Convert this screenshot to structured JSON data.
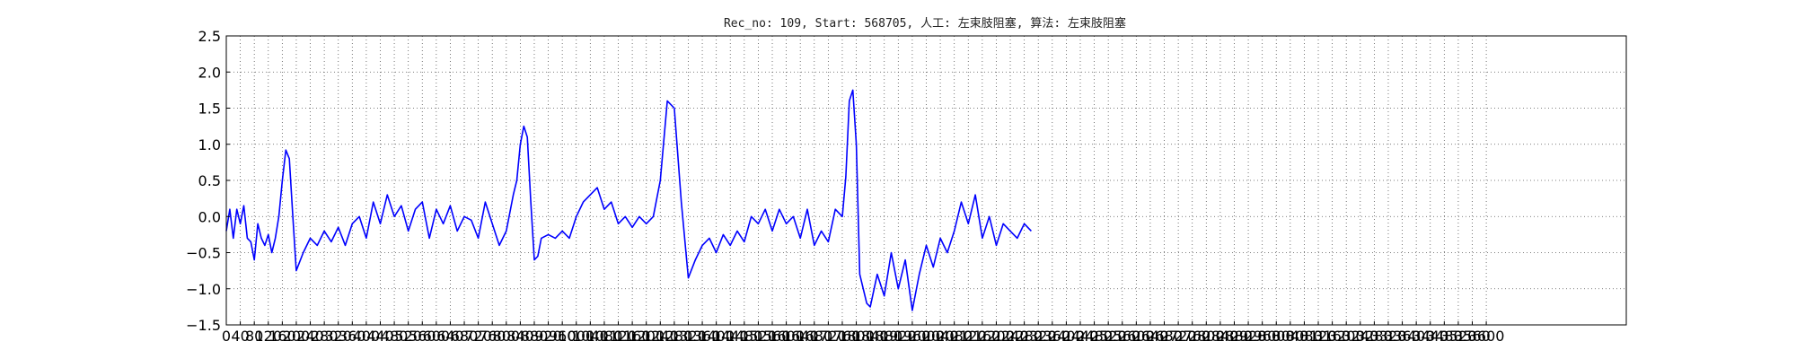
{
  "chart_data": {
    "type": "line",
    "title": "Rec_no: 109, Start: 568705, 人工: 左束肢阻塞, 算法: 左束肢阻塞",
    "xlabel": "",
    "ylabel": "",
    "xlim": [
      0,
      4000
    ],
    "ylim": [
      -1.5,
      2.5
    ],
    "grid": true,
    "x_ticks": [
      0,
      40,
      80,
      120,
      160,
      200,
      240,
      280,
      320,
      360,
      400,
      440,
      480,
      520,
      560,
      600,
      640,
      680,
      720,
      760,
      800,
      840,
      880,
      920,
      960,
      1000,
      1040,
      1080,
      1120,
      1160,
      1200,
      1240,
      1280,
      1320,
      1360,
      1400,
      1440,
      1480,
      1520,
      1560,
      1600,
      1640,
      1680,
      1720,
      1760,
      1800,
      1840,
      1880,
      1920,
      1960,
      2000,
      2040,
      2080,
      2120,
      2160,
      2200,
      2240,
      2280,
      2320,
      2360,
      2400,
      2440,
      2480,
      2520,
      2560,
      2600,
      2640,
      2680,
      2720,
      2760,
      2800,
      2840,
      2880,
      2920,
      2960,
      3000,
      3040,
      3080,
      3120,
      3160,
      3200,
      3240,
      3280,
      3320,
      3360,
      3400,
      3440,
      3480,
      3520,
      3560,
      3600
    ],
    "y_ticks": [
      "2.5",
      "2.0",
      "1.5",
      "1.0",
      "0.5",
      "0.0",
      "−0.5",
      "−1.0",
      "−1.5"
    ],
    "y_tick_values": [
      2.5,
      2.0,
      1.5,
      1.0,
      0.5,
      0.0,
      -0.5,
      -1.0,
      -1.5
    ],
    "series": [
      {
        "color": "#0000ff",
        "x": [
          0,
          10,
          20,
          30,
          40,
          50,
          60,
          70,
          80,
          90,
          100,
          110,
          120,
          130,
          140,
          150,
          160,
          170,
          180,
          190,
          200,
          220,
          240,
          260,
          280,
          300,
          320,
          340,
          360,
          380,
          400,
          420,
          440,
          460,
          480,
          500,
          520,
          540,
          560,
          580,
          600,
          620,
          640,
          660,
          680,
          700,
          720,
          740,
          760,
          780,
          800,
          820,
          830,
          840,
          850,
          860,
          870,
          880,
          890,
          900,
          920,
          940,
          960,
          980,
          1000,
          1020,
          1040,
          1060,
          1080,
          1100,
          1120,
          1140,
          1160,
          1180,
          1200,
          1220,
          1240,
          1260,
          1280,
          1300,
          1320,
          1340,
          1360,
          1380,
          1400,
          1420,
          1440,
          1460,
          1480,
          1500,
          1520,
          1540,
          1560,
          1580,
          1600,
          1620,
          1640,
          1660,
          1680,
          1700,
          1720,
          1740,
          1760,
          1770,
          1780,
          1790,
          1800,
          1810,
          1820,
          1830,
          1840,
          1860,
          1880,
          1900,
          1920,
          1940,
          1960,
          1980,
          2000,
          2020,
          2040,
          2060,
          2080,
          2100,
          2120,
          2140,
          2160,
          2180,
          2200,
          2220,
          2240,
          2260,
          2280,
          2300
        ],
        "y": [
          -0.2,
          0.1,
          -0.3,
          0.1,
          -0.1,
          0.15,
          -0.3,
          -0.35,
          -0.6,
          -0.1,
          -0.3,
          -0.4,
          -0.25,
          -0.5,
          -0.3,
          0.0,
          0.5,
          0.92,
          0.8,
          0.0,
          -0.75,
          -0.5,
          -0.3,
          -0.4,
          -0.2,
          -0.35,
          -0.15,
          -0.4,
          -0.1,
          0.0,
          -0.3,
          0.2,
          -0.1,
          0.3,
          0.0,
          0.15,
          -0.2,
          0.1,
          0.2,
          -0.3,
          0.1,
          -0.1,
          0.15,
          -0.2,
          0.0,
          -0.05,
          -0.3,
          0.2,
          -0.1,
          -0.4,
          -0.2,
          0.3,
          0.5,
          1.0,
          1.25,
          1.1,
          0.2,
          -0.6,
          -0.55,
          -0.3,
          -0.25,
          -0.3,
          -0.2,
          -0.3,
          0.0,
          0.2,
          0.3,
          0.4,
          0.1,
          0.2,
          -0.1,
          0.0,
          -0.15,
          0.0,
          -0.1,
          0.0,
          0.5,
          1.6,
          1.5,
          0.2,
          -0.85,
          -0.6,
          -0.4,
          -0.3,
          -0.5,
          -0.25,
          -0.4,
          -0.2,
          -0.35,
          0.0,
          -0.1,
          0.1,
          -0.2,
          0.1,
          -0.1,
          0.0,
          -0.3,
          0.1,
          -0.4,
          -0.2,
          -0.35,
          0.1,
          0.0,
          0.55,
          1.6,
          1.75,
          1.0,
          -0.8,
          -1.0,
          -1.2,
          -1.25,
          -0.8,
          -1.1,
          -0.5,
          -1.0,
          -0.6,
          -1.3,
          -0.8,
          -0.4,
          -0.7,
          -0.3,
          -0.5,
          -0.2,
          0.2,
          -0.1,
          0.3,
          -0.3,
          0.0,
          -0.4,
          -0.1,
          -0.2,
          -0.3,
          -0.1,
          -0.2
        ],
        "name": ""
      }
    ]
  }
}
